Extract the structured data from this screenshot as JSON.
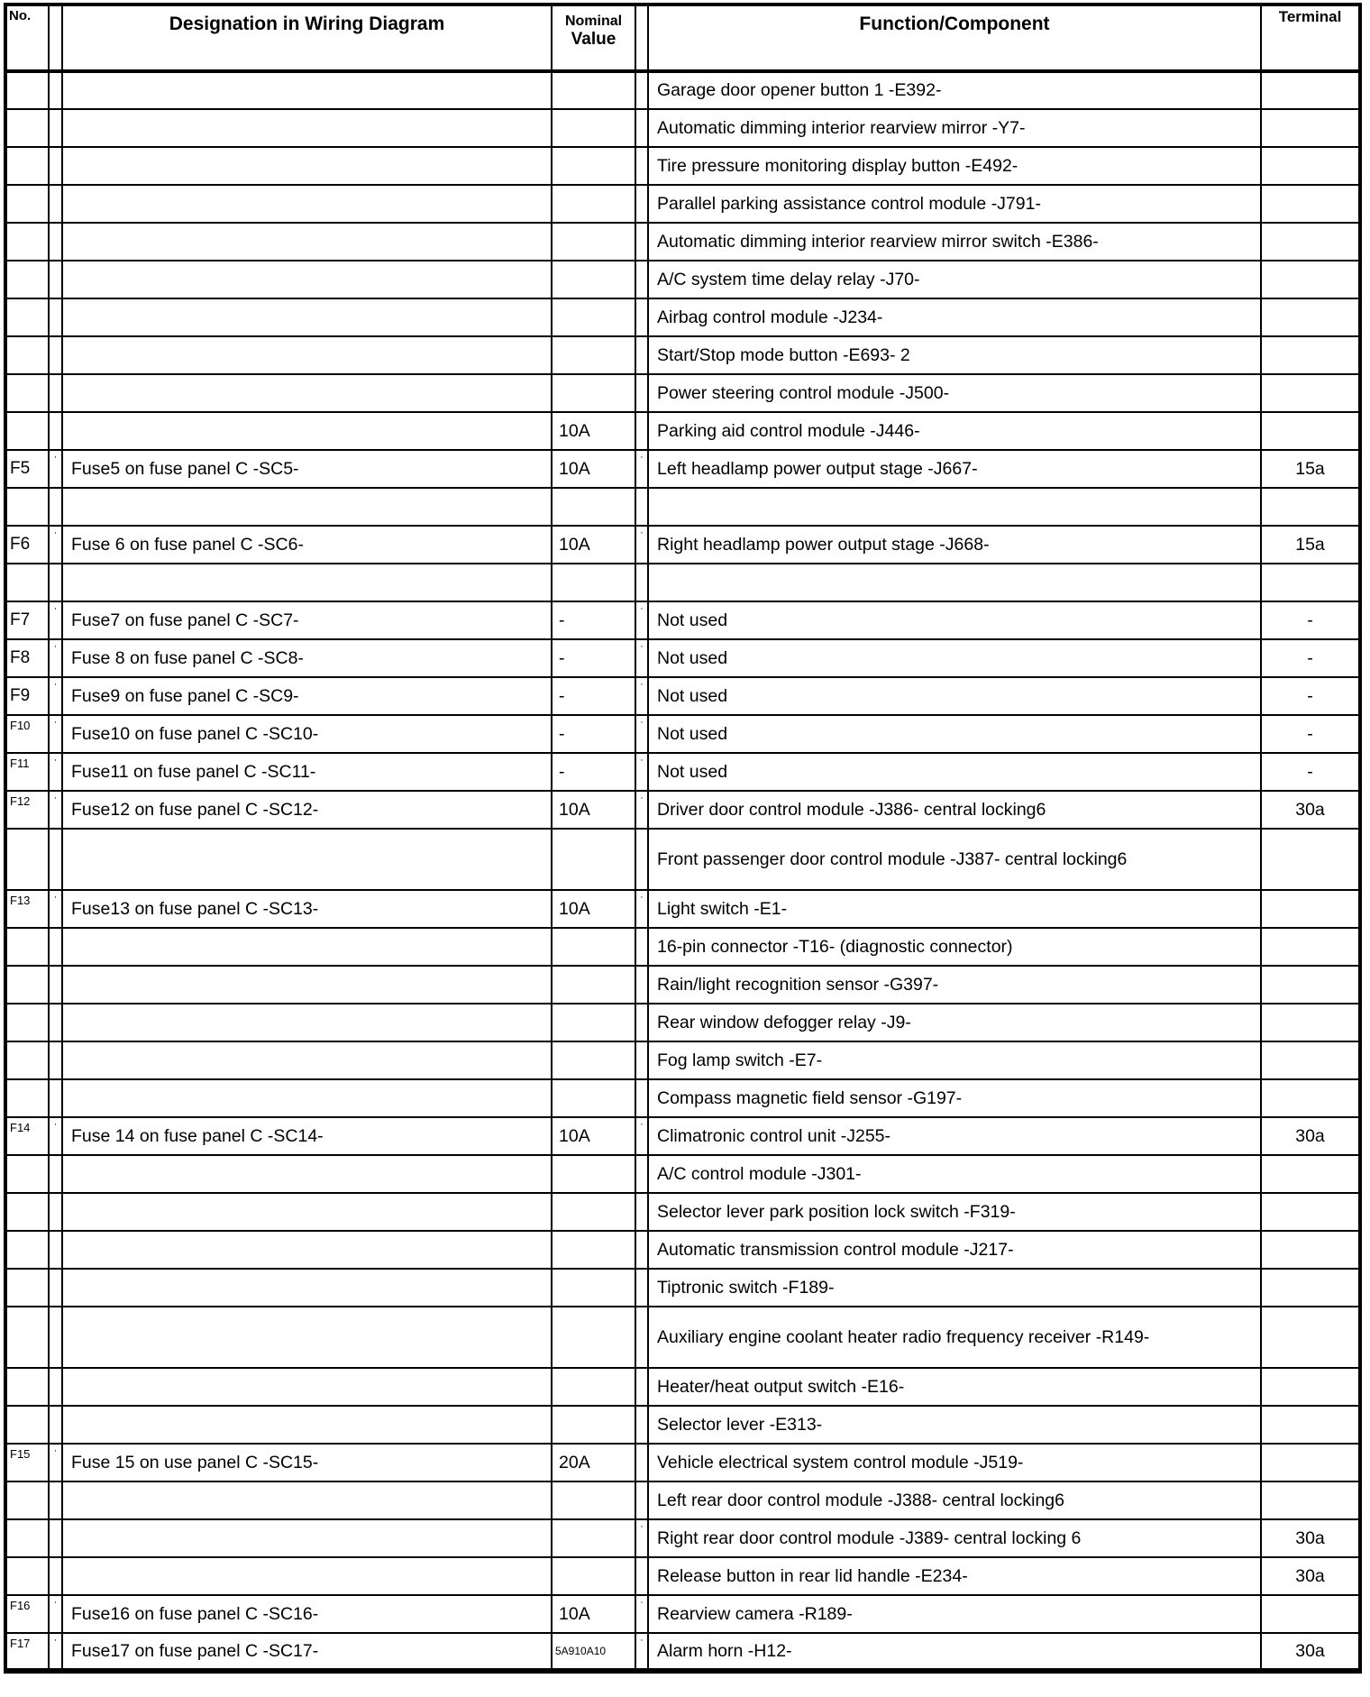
{
  "page": {
    "background_color": "#ffffff",
    "line_color": "#000000"
  },
  "table": {
    "headers": {
      "no": "No.",
      "designation": "Designation in Wiring Diagram",
      "nominal_line1": "Nominal",
      "nominal_line2": "Value",
      "function": "Function/Component",
      "terminal": "Terminal"
    },
    "footnote_marker": "·",
    "rows": [
      {
        "no": "",
        "designation": "",
        "value": "",
        "function": "Garage door opener button 1 -E392-",
        "terminal": ""
      },
      {
        "no": "",
        "designation": "",
        "value": "",
        "function": "Automatic dimming interior rearview mirror -Y7-",
        "terminal": ""
      },
      {
        "no": "",
        "designation": "",
        "value": "",
        "function": "Tire pressure monitoring display button -E492-",
        "terminal": ""
      },
      {
        "no": "",
        "designation": "",
        "value": "",
        "function": "Parallel parking assistance control module -J791-",
        "terminal": ""
      },
      {
        "no": "",
        "designation": "",
        "value": "",
        "function": "Automatic dimming interior rearview mirror switch -E386-",
        "terminal": ""
      },
      {
        "no": "",
        "designation": "",
        "value": "",
        "function": "A/C system time delay relay -J70-",
        "terminal": ""
      },
      {
        "no": "",
        "designation": "",
        "value": "",
        "function": "Airbag control module -J234-",
        "terminal": ""
      },
      {
        "no": "",
        "designation": "",
        "value": "",
        "function": "Start/Stop mode button -E693- 2",
        "terminal": ""
      },
      {
        "no": "",
        "designation": "",
        "value": "",
        "function": "Power steering control module -J500-",
        "terminal": ""
      },
      {
        "no": "",
        "designation": "",
        "value": "10A",
        "function": "Parking aid control module -J446-",
        "terminal": ""
      },
      {
        "no": "F5",
        "designation": "Fuse5 on fuse panel C -SC5-",
        "value": "10A",
        "function": "Left headlamp power output stage -J667-",
        "terminal": "15a",
        "dot2": true,
        "dot5": true
      },
      {
        "no": "",
        "designation": "",
        "value": "",
        "function": "",
        "terminal": ""
      },
      {
        "no": "F6",
        "designation": "Fuse 6 on fuse panel C -SC6-",
        "value": "10A",
        "function": "Right headlamp power output stage -J668-",
        "terminal": "15a",
        "dot2": true,
        "dot5": true
      },
      {
        "no": "",
        "designation": "",
        "value": "",
        "function": "",
        "terminal": ""
      },
      {
        "no": "F7",
        "designation": "Fuse7 on fuse panel C -SC7-",
        "value": "-",
        "function": "Not used",
        "terminal": "-",
        "dot2": true,
        "dot5": true
      },
      {
        "no": "F8",
        "designation": "Fuse 8 on fuse panel C -SC8-",
        "value": "-",
        "function": "Not used",
        "terminal": "-",
        "dot2": true,
        "dot5": true
      },
      {
        "no": "F9",
        "designation": "Fuse9 on fuse panel C -SC9-",
        "value": "-",
        "function": "Not used",
        "terminal": "-",
        "dot2": true,
        "dot5": true
      },
      {
        "no": "F10",
        "designation": "Fuse10 on fuse panel C -SC10-",
        "value": "-",
        "function": "Not used",
        "terminal": "-",
        "small_no": true,
        "dot2": true,
        "dot5": true
      },
      {
        "no": "F11",
        "designation": "Fuse11 on fuse panel C -SC11-",
        "value": "-",
        "function": "Not used",
        "terminal": "-",
        "small_no": true,
        "dot2": true,
        "dot5": true
      },
      {
        "no": "F12",
        "designation": "Fuse12 on fuse panel C -SC12-",
        "value": "10A",
        "function": "Driver door control module -J386- central locking6",
        "terminal": "30a",
        "small_no": true,
        "dot2": true,
        "dot5": true
      },
      {
        "no": "",
        "designation": "",
        "value": "",
        "function": "Front passenger door control module -J387- central locking6",
        "terminal": "",
        "tall": true
      },
      {
        "no": "F13",
        "designation": "Fuse13 on fuse panel C -SC13-",
        "value": "10A",
        "function": "Light switch -E1-",
        "terminal": "",
        "small_no": true,
        "dot2": true,
        "dot5": true
      },
      {
        "no": "",
        "designation": "",
        "value": "",
        "function": "16-pin connector -T16- (diagnostic connector)",
        "terminal": ""
      },
      {
        "no": "",
        "designation": "",
        "value": "",
        "function": "Rain/light recognition sensor -G397-",
        "terminal": ""
      },
      {
        "no": "",
        "designation": "",
        "value": "",
        "function": "Rear window defogger relay -J9-",
        "terminal": ""
      },
      {
        "no": "",
        "designation": "",
        "value": "",
        "function": "Fog lamp switch -E7-",
        "terminal": ""
      },
      {
        "no": "",
        "designation": "",
        "value": "",
        "function": "Compass magnetic field sensor -G197-",
        "terminal": ""
      },
      {
        "no": "F14",
        "designation": "Fuse 14 on fuse panel C -SC14-",
        "value": "10A",
        "function": "Climatronic control unit -J255-",
        "terminal": "30a",
        "small_no": true,
        "dot2": true,
        "dot5": true
      },
      {
        "no": "",
        "designation": "",
        "value": "",
        "function": "A/C control module -J301-",
        "terminal": ""
      },
      {
        "no": "",
        "designation": "",
        "value": "",
        "function": "Selector lever park position lock switch -F319-",
        "terminal": ""
      },
      {
        "no": "",
        "designation": "",
        "value": "",
        "function": "Automatic transmission control module -J217-",
        "terminal": ""
      },
      {
        "no": "",
        "designation": "",
        "value": "",
        "function": "Tiptronic switch -F189-",
        "terminal": ""
      },
      {
        "no": "",
        "designation": "",
        "value": "",
        "function": "Auxiliary engine coolant heater radio frequency receiver -R149-",
        "terminal": "",
        "tall": true
      },
      {
        "no": "",
        "designation": "",
        "value": "",
        "function": "Heater/heat output switch -E16-",
        "terminal": ""
      },
      {
        "no": "",
        "designation": "",
        "value": "",
        "function": "Selector lever -E313-",
        "terminal": ""
      },
      {
        "no": "F15",
        "designation": "Fuse 15 on use panel C -SC15-",
        "value": "20A",
        "function": "Vehicle electrical system control module -J519-",
        "terminal": "",
        "small_no": true,
        "dot2": true
      },
      {
        "no": "",
        "designation": "",
        "value": "",
        "function": "Left rear door control module -J388- central locking6",
        "terminal": ""
      },
      {
        "no": "",
        "designation": "",
        "value": "",
        "function": "Right rear door control module -J389- central locking 6",
        "terminal": "30a",
        "dot5": true
      },
      {
        "no": "",
        "designation": "",
        "value": "",
        "function": "Release button in rear lid handle -E234-",
        "terminal": "30a"
      },
      {
        "no": "F16",
        "designation": "Fuse16 on fuse panel C -SC16-",
        "value": "10A",
        "function": "Rearview camera -R189-",
        "terminal": "",
        "small_no": true,
        "dot2": true,
        "dot5": true
      },
      {
        "no": "F17",
        "designation": "Fuse17 on fuse panel C -SC17-",
        "value": "5A910A10",
        "function": "Alarm horn -H12-",
        "terminal": "30a",
        "small_no": true,
        "tiny_value": true,
        "dot2": true,
        "dot5": true
      }
    ]
  }
}
